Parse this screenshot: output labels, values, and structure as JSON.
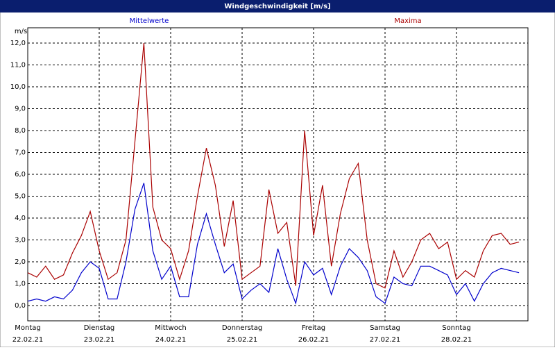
{
  "chart_data": {
    "type": "line",
    "title": "Windgeschwindigkeit [m/s]",
    "y_unit": "m/s",
    "x": [
      0,
      0.125,
      0.25,
      0.375,
      0.5,
      0.625,
      0.75,
      0.875,
      1,
      1.125,
      1.25,
      1.375,
      1.5,
      1.625,
      1.75,
      1.875,
      2,
      2.125,
      2.25,
      2.375,
      2.5,
      2.625,
      2.75,
      2.875,
      3,
      3.125,
      3.25,
      3.375,
      3.5,
      3.625,
      3.75,
      3.875,
      4,
      4.125,
      4.25,
      4.375,
      4.5,
      4.625,
      4.75,
      4.875,
      5,
      5.125,
      5.25,
      5.375,
      5.5,
      5.625,
      5.75,
      5.875,
      6,
      6.125,
      6.25,
      6.375,
      6.5,
      6.625,
      6.75,
      6.875
    ],
    "series": [
      {
        "name": "Mittelwerte",
        "color": "#0000cc",
        "values": [
          0.2,
          0.3,
          0.2,
          0.4,
          0.3,
          0.7,
          1.5,
          2.0,
          1.7,
          0.3,
          0.3,
          2.0,
          4.4,
          5.6,
          2.5,
          1.2,
          1.8,
          0.4,
          0.4,
          2.8,
          4.2,
          2.8,
          1.5,
          1.9,
          0.3,
          0.7,
          1.0,
          0.6,
          2.6,
          1.2,
          0.1,
          2.0,
          1.4,
          1.7,
          0.5,
          1.8,
          2.6,
          2.2,
          1.6,
          0.4,
          0.1,
          1.3,
          1.0,
          0.9,
          1.8,
          1.8,
          1.6,
          1.4,
          0.5,
          1.0,
          0.2,
          1.0,
          1.5,
          1.7,
          1.6,
          1.5
        ]
      },
      {
        "name": "Maxima",
        "color": "#aa0000",
        "values": [
          1.5,
          1.3,
          1.8,
          1.2,
          1.4,
          2.4,
          3.2,
          4.3,
          2.5,
          1.2,
          1.5,
          3.0,
          7.5,
          12.0,
          4.5,
          3.0,
          2.6,
          1.2,
          2.5,
          5.0,
          7.2,
          5.5,
          2.7,
          4.8,
          1.2,
          1.5,
          1.8,
          5.3,
          3.3,
          3.8,
          0.9,
          8.0,
          3.2,
          5.5,
          1.8,
          4.2,
          5.8,
          6.5,
          3.0,
          1.0,
          0.8,
          2.5,
          1.3,
          2.0,
          3.0,
          3.3,
          2.6,
          2.9,
          1.2,
          1.6,
          1.3,
          2.5,
          3.2,
          3.3,
          2.8,
          2.9
        ]
      }
    ],
    "xlim": [
      0,
      7
    ],
    "xticks": [
      {
        "value": 0,
        "label": "Montag"
      },
      {
        "value": 1,
        "label": "Dienstag"
      },
      {
        "value": 2,
        "label": "Mittwoch"
      },
      {
        "value": 3,
        "label": "Donnerstag"
      },
      {
        "value": 4,
        "label": "Freitag"
      },
      {
        "value": 5,
        "label": "Samstag"
      },
      {
        "value": 6,
        "label": "Sonntag"
      }
    ],
    "xtick_dates": [
      "22.02.21",
      "23.02.21",
      "24.02.21",
      "25.02.21",
      "26.02.21",
      "27.02.21",
      "28.02.21"
    ],
    "ylim": [
      -0.7,
      12.7
    ],
    "yticks": [
      {
        "value": 0,
        "label": "0,0"
      },
      {
        "value": 1,
        "label": "1,0"
      },
      {
        "value": 2,
        "label": "2,0"
      },
      {
        "value": 3,
        "label": "3,0"
      },
      {
        "value": 4,
        "label": "4,0"
      },
      {
        "value": 5,
        "label": "5,0"
      },
      {
        "value": 6,
        "label": "6,0"
      },
      {
        "value": 7,
        "label": "7,0"
      },
      {
        "value": 8,
        "label": "8,0"
      },
      {
        "value": 9,
        "label": "9,0"
      },
      {
        "value": 10,
        "label": "10,0"
      },
      {
        "value": 11,
        "label": "11,0"
      },
      {
        "value": 12,
        "label": "12,0"
      }
    ],
    "grid": true
  }
}
